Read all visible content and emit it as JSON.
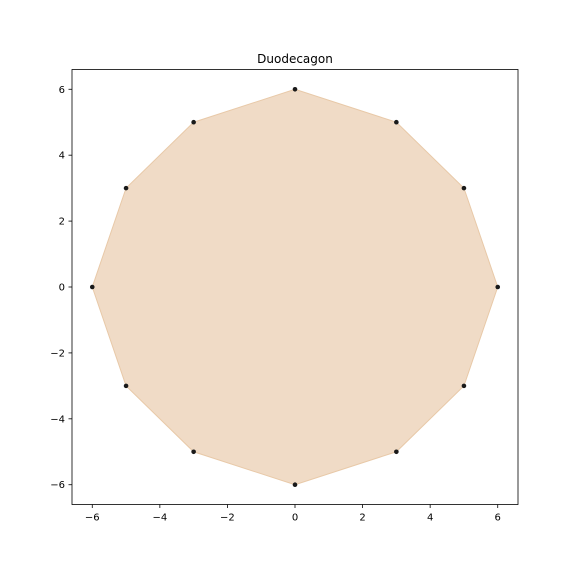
{
  "chart_data": {
    "type": "scatter",
    "title": "Duodecagon",
    "xlabel": "",
    "ylabel": "",
    "xlim": [
      -6.6,
      6.6
    ],
    "ylim": [
      -6.6,
      6.6
    ],
    "grid": false,
    "x_ticks": [
      -6,
      -4,
      -2,
      0,
      2,
      4,
      6
    ],
    "y_ticks": [
      -6,
      -4,
      -2,
      0,
      2,
      4,
      6
    ],
    "x_tick_labels": [
      "−6",
      "−4",
      "−2",
      "0",
      "2",
      "4",
      "6"
    ],
    "y_tick_labels": [
      "−6",
      "−4",
      "−2",
      "0",
      "2",
      "4",
      "6"
    ],
    "fill_color": "#f0dbc6",
    "fill_edge_color": "#e8c9a8",
    "marker_color": "#1a1a1a",
    "points": [
      {
        "x": 6,
        "y": 0
      },
      {
        "x": 5,
        "y": 3
      },
      {
        "x": 3,
        "y": 5
      },
      {
        "x": 0,
        "y": 6
      },
      {
        "x": -3,
        "y": 5
      },
      {
        "x": -5,
        "y": 3
      },
      {
        "x": -6,
        "y": 0
      },
      {
        "x": -5,
        "y": -3
      },
      {
        "x": -3,
        "y": -5
      },
      {
        "x": 0,
        "y": -6
      },
      {
        "x": 3,
        "y": -5
      },
      {
        "x": 5,
        "y": -3
      }
    ]
  }
}
